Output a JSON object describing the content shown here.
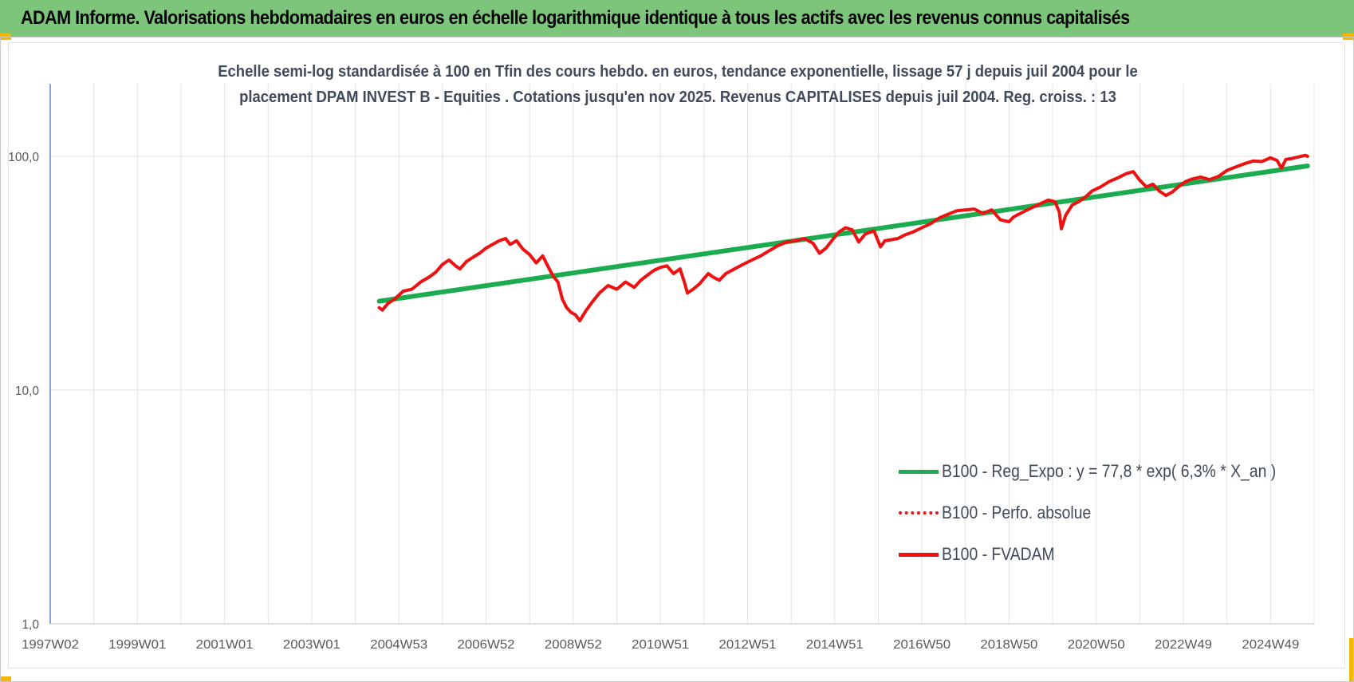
{
  "banner": {
    "title": "ADAM Informe. Valorisations hebdomadaires en euros en échelle logarithmique identique à tous les actifs avec les revenus connus capitalisés"
  },
  "colors": {
    "banner_bg": "#7dc57a",
    "corner_marker": "#f5b800",
    "regression": "#1aac4e",
    "fvadam": "#ee1111",
    "perfo": "#ee1111",
    "axis_text": "#595959",
    "subtitle_text": "#404a5a",
    "grid": "#dfe3e8",
    "y_axis_line": "#4472c4"
  },
  "chart_data": {
    "type": "line",
    "title_line1": "Echelle semi-log standardisée à 100 en Tfin des cours hebdo. en euros, tendance exponentielle, lissage 57 j depuis juil 2004 pour le",
    "title_line2": "placement DPAM INVEST B - Equities . Cotations jusqu'en nov 2025. Revenus CAPITALISES depuis juil 2004. Reg. croiss. : 13",
    "y_scale": "log",
    "ylim": [
      1,
      100
    ],
    "y_ticks": [
      1,
      10,
      100
    ],
    "y_tick_labels": [
      "1,0",
      "10,0",
      "100,0"
    ],
    "xlim": [
      1997.0,
      2026.0
    ],
    "x_ticks": [
      {
        "label": "1997W02",
        "x": 1997.0
      },
      {
        "label": "1999W01",
        "x": 1999.0
      },
      {
        "label": "2001W01",
        "x": 2001.0
      },
      {
        "label": "2003W01",
        "x": 2003.0
      },
      {
        "label": "2004W53",
        "x": 2005.0
      },
      {
        "label": "2006W52",
        "x": 2007.0
      },
      {
        "label": "2008W52",
        "x": 2009.0
      },
      {
        "label": "2010W51",
        "x": 2011.0
      },
      {
        "label": "2012W51",
        "x": 2013.0
      },
      {
        "label": "2014W51",
        "x": 2015.0
      },
      {
        "label": "2016W50",
        "x": 2017.0
      },
      {
        "label": "2018W50",
        "x": 2019.0
      },
      {
        "label": "2020W50",
        "x": 2021.0
      },
      {
        "label": "2022W49",
        "x": 2023.0
      },
      {
        "label": "2024W49",
        "x": 2025.0
      }
    ],
    "grid": true,
    "legend_position": "right",
    "series": [
      {
        "name": "B100 - Reg_Expo : y = 77,8 * exp( 6,3% * X_an )",
        "style": "solid",
        "x": [
          2004.55,
          2025.85
        ],
        "y": [
          24.0,
          91.0
        ]
      },
      {
        "name": "B100 - Perfo. absolue",
        "style": "dotted",
        "x": [],
        "y": []
      },
      {
        "name": "B100 - FVADAM",
        "style": "solid",
        "x": [
          2004.55,
          2004.62,
          2004.75,
          2004.9,
          2005.1,
          2005.3,
          2005.5,
          2005.7,
          2005.85,
          2006.0,
          2006.15,
          2006.3,
          2006.4,
          2006.55,
          2006.7,
          2006.85,
          2007.0,
          2007.15,
          2007.3,
          2007.45,
          2007.55,
          2007.7,
          2007.85,
          2008.0,
          2008.15,
          2008.3,
          2008.45,
          2008.55,
          2008.65,
          2008.75,
          2008.85,
          2008.95,
          2009.05,
          2009.15,
          2009.3,
          2009.45,
          2009.6,
          2009.8,
          2010.0,
          2010.2,
          2010.4,
          2010.55,
          2010.7,
          2010.85,
          2011.0,
          2011.15,
          2011.3,
          2011.45,
          2011.55,
          2011.62,
          2011.75,
          2011.9,
          2012.0,
          2012.1,
          2012.2,
          2012.35,
          2012.5,
          2012.7,
          2012.9,
          2013.1,
          2013.3,
          2013.5,
          2013.7,
          2013.9,
          2014.1,
          2014.3,
          2014.5,
          2014.65,
          2014.8,
          2014.95,
          2015.1,
          2015.25,
          2015.4,
          2015.55,
          2015.7,
          2015.9,
          2016.05,
          2016.15,
          2016.3,
          2016.45,
          2016.6,
          2016.8,
          2017.0,
          2017.2,
          2017.4,
          2017.6,
          2017.8,
          2018.0,
          2018.2,
          2018.4,
          2018.6,
          2018.8,
          2019.0,
          2019.1,
          2019.3,
          2019.5,
          2019.7,
          2019.9,
          2020.05,
          2020.15,
          2020.2,
          2020.3,
          2020.45,
          2020.6,
          2020.75,
          2020.9,
          2021.1,
          2021.3,
          2021.5,
          2021.7,
          2021.85,
          2022.0,
          2022.15,
          2022.3,
          2022.45,
          2022.6,
          2022.75,
          2022.9,
          2023.05,
          2023.2,
          2023.4,
          2023.6,
          2023.8,
          2024.0,
          2024.2,
          2024.4,
          2024.6,
          2024.8,
          2025.0,
          2025.15,
          2025.25,
          2025.35,
          2025.5,
          2025.65,
          2025.8,
          2025.85
        ],
        "y": [
          22.5,
          22.0,
          23.5,
          24.5,
          26.5,
          27.0,
          29.0,
          30.5,
          32.0,
          34.5,
          36.0,
          34.0,
          33.0,
          35.5,
          37.0,
          38.5,
          40.5,
          42.0,
          43.5,
          44.5,
          42.0,
          43.5,
          40.0,
          38.0,
          35.0,
          37.5,
          33.0,
          30.5,
          29.0,
          24.5,
          22.5,
          21.5,
          21.0,
          19.8,
          22.0,
          24.0,
          26.0,
          28.0,
          27.0,
          29.0,
          27.5,
          29.5,
          31.0,
          32.5,
          33.5,
          34.0,
          31.5,
          33.0,
          29.0,
          26.0,
          27.0,
          28.5,
          30.0,
          31.5,
          30.5,
          29.5,
          31.5,
          33.0,
          34.5,
          36.0,
          37.5,
          39.5,
          41.5,
          43.0,
          43.5,
          44.5,
          42.5,
          38.5,
          40.5,
          44.0,
          47.5,
          49.5,
          48.5,
          43.0,
          46.5,
          48.0,
          41.0,
          43.5,
          44.0,
          44.5,
          46.0,
          47.5,
          49.5,
          51.5,
          54.5,
          56.5,
          58.5,
          59.0,
          59.5,
          57.0,
          59.0,
          53.5,
          52.5,
          55.0,
          57.5,
          60.0,
          62.5,
          65.0,
          64.0,
          58.0,
          49.0,
          56.0,
          62.0,
          64.0,
          67.0,
          71.0,
          74.0,
          78.0,
          81.0,
          84.5,
          86.0,
          79.0,
          74.0,
          76.0,
          71.0,
          68.0,
          70.5,
          74.5,
          78.0,
          80.0,
          81.5,
          79.5,
          82.0,
          87.0,
          90.0,
          93.0,
          95.5,
          95.0,
          98.5,
          96.0,
          89.0,
          97.0,
          98.0,
          99.5,
          101.0,
          100.0
        ]
      }
    ]
  }
}
